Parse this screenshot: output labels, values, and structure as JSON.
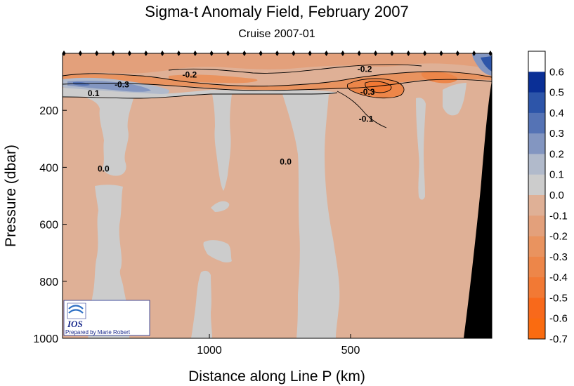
{
  "chart_data": {
    "type": "heatmap",
    "title": "Sigma-t Anomaly Field,  February 2007",
    "subtitle": "Cruise 2007-01",
    "xlabel": "Distance along Line P  (km)",
    "ylabel": "Pressure  (dbar)",
    "x_axis": {
      "direction": "decreasing",
      "lim": [
        1520,
        0
      ],
      "ticks": [
        1000,
        500
      ],
      "tick_labels": [
        "1000",
        "500"
      ]
    },
    "y_axis": {
      "direction": "downward",
      "lim": [
        0,
        1000
      ],
      "ticks": [
        200,
        400,
        600,
        800,
        1000
      ],
      "tick_labels": [
        "200",
        "400",
        "600",
        "800",
        "1000"
      ]
    },
    "colorbar": {
      "levels": [
        0.6,
        0.5,
        0.4,
        0.3,
        0.2,
        0.1,
        0.0,
        -0.1,
        -0.2,
        -0.3,
        -0.4,
        -0.5,
        -0.6,
        -0.7
      ],
      "labels": [
        "0.6",
        "0.5",
        "0.4",
        "0.3",
        "0.2",
        "0.1",
        "0.0",
        "-0.1",
        "-0.2",
        "-0.3",
        "-0.4",
        "-0.5",
        "-0.6",
        "-0.7"
      ],
      "colors": [
        "#ffffff",
        "#0a2f96",
        "#2d55a9",
        "#5573b5",
        "#8396c1",
        "#b1bacb",
        "#cccccc",
        "#dfb096",
        "#e3a07b",
        "#e9935f",
        "#ed8649",
        "#f27934",
        "#f8691b",
        "#fa6b10"
      ]
    },
    "background_value": -0.05,
    "bottom_topography_color": "#000000",
    "station_marker_count": 27,
    "contour_labels": [
      {
        "text": "-0.2",
        "x": 1070,
        "p": 85
      },
      {
        "text": "-0.2",
        "x": 450,
        "p": 65
      },
      {
        "text": "-0.3",
        "x": 1310,
        "p": 120
      },
      {
        "text": "-0.3",
        "x": 440,
        "p": 145
      },
      {
        "text": "0.1",
        "x": 1410,
        "p": 150
      },
      {
        "text": "-0.1",
        "x": 445,
        "p": 240
      },
      {
        "text": "0.0",
        "x": 1375,
        "p": 415
      },
      {
        "text": "0.0",
        "x": 730,
        "p": 390
      }
    ],
    "regions": [
      {
        "name": "surface-layer",
        "value": -0.15,
        "x": [
          1520,
          0
        ],
        "p": [
          0,
          80
        ]
      },
      {
        "name": "pycnocline-core",
        "value": -0.3,
        "x": [
          520,
          350
        ],
        "p": [
          100,
          170
        ]
      },
      {
        "name": "west-positive-lens",
        "value": 0.3,
        "x": [
          1520,
          1330
        ],
        "p": [
          100,
          150
        ]
      },
      {
        "name": "zero-column-1",
        "value": 0.0,
        "x": [
          1400,
          1230
        ],
        "p": [
          120,
          1000
        ]
      },
      {
        "name": "zero-column-2",
        "value": 0.0,
        "x": [
          1100,
          950
        ],
        "p": [
          120,
          1000
        ]
      },
      {
        "name": "zero-column-3",
        "value": 0.0,
        "x": [
          800,
          580
        ],
        "p": [
          120,
          1000
        ]
      },
      {
        "name": "east-shelf-positive",
        "value": 0.4,
        "x": [
          80,
          0
        ],
        "p": [
          0,
          100
        ]
      }
    ]
  },
  "logo": {
    "name": "IOS",
    "credit": "Prepared by Marie Robert"
  }
}
